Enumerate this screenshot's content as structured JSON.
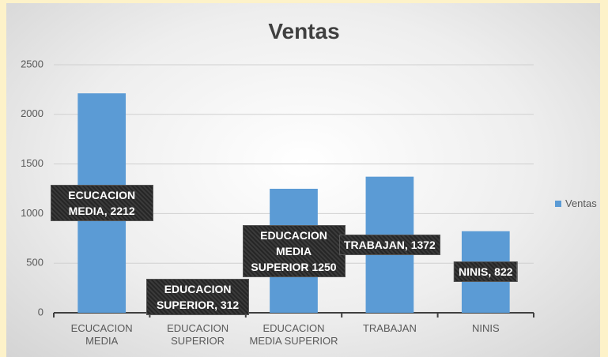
{
  "chart_data": {
    "type": "bar",
    "title": "Ventas",
    "categories": [
      "ECUCACION MEDIA",
      "EDUCACION SUPERIOR",
      "EDUCACION MEDIA SUPERIOR",
      "TRABAJAN",
      "NINIS"
    ],
    "series": [
      {
        "name": "Ventas",
        "color": "#5b9bd5",
        "values": [
          2212,
          312,
          1250,
          1372,
          822
        ],
        "value_labels": [
          "ECUCACION MEDIA, 2212",
          "EDUCACION SUPERIOR, 312",
          "EDUCACION MEDIA SUPERIOR 1250",
          "TRABAJAN, 1372",
          "NINIS, 822"
        ]
      }
    ],
    "ylim": [
      0,
      2500
    ],
    "yticks": [
      0,
      500,
      1000,
      1500,
      2000,
      2500
    ],
    "grid": true,
    "legend": "right"
  }
}
